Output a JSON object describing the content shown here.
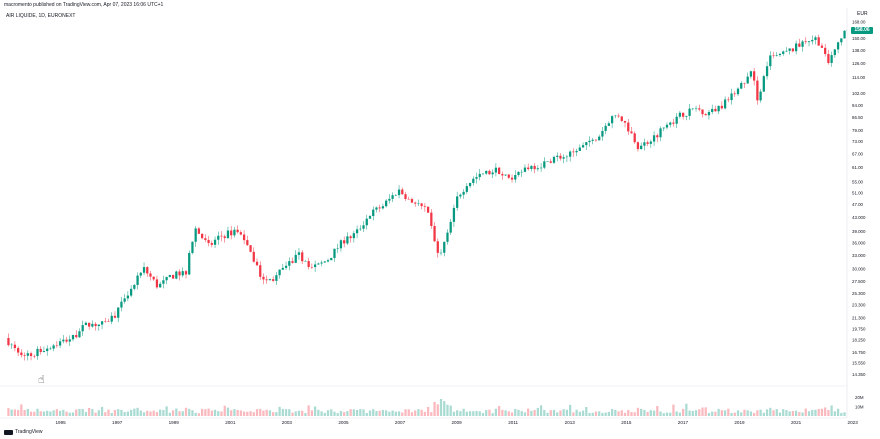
{
  "header": {
    "published_line": "macromento published on TradingView.com, Apr 07, 2023 16:06 UTC+1",
    "symbol_line": "AIR LIQUIDE, 1D, EURONEXT"
  },
  "price_axis": {
    "currency": "EUR",
    "last_price_label": "158.06"
  },
  "brand": {
    "logo_text": "TradingView"
  },
  "icons": {
    "cursor": "pointer-hand-icon"
  },
  "colors": {
    "up": "#089981",
    "down": "#f23645",
    "last_price_bg": "#089981",
    "grid": "#f0f3fa"
  },
  "chart_data": {
    "type": "line",
    "subtype": "candlestick-daily",
    "yscale": "log",
    "ylim": [
      13.8,
      168
    ],
    "x_tick_labels": [
      "1995",
      "1997",
      "1999",
      "2001",
      "2003",
      "2005",
      "2007",
      "2009",
      "2011",
      "2013",
      "2015",
      "2017",
      "2019",
      "2021",
      "2023"
    ],
    "xlim": [
      1993.5,
      2023.3
    ],
    "y_tick_labels": [
      "168.00",
      "150.00",
      "138.00",
      "126.00",
      "114.00",
      "102.00",
      "94.00",
      "86.50",
      "79.00",
      "73.00",
      "67.00",
      "61.00",
      "55.00",
      "51.00",
      "47.00",
      "43.000",
      "39.000",
      "36.000",
      "33.000",
      "30.000",
      "27.500",
      "25.300",
      "23.300",
      "21.300",
      "19.750",
      "18.250",
      "16.750",
      "15.550",
      "14.350"
    ],
    "series": [
      {
        "x": [
          1993.6,
          1994.0,
          1994.5,
          1995.0,
          1995.5,
          1996.0,
          1996.5,
          1997.0,
          1997.5,
          1998.0,
          1998.5,
          1999.0,
          1999.5,
          2000.0,
          2000.3,
          2000.8,
          2001.2,
          2001.7,
          2002.0,
          2002.4,
          2002.8,
          2003.1,
          2003.5,
          2004.0,
          2004.5,
          2005.0,
          2005.5,
          2006.0,
          2006.5,
          2007.0,
          2007.5,
          2008.0,
          2008.5,
          2008.9,
          2009.2,
          2009.6,
          2010.0,
          2010.5,
          2011.0,
          2011.5,
          2012.0,
          2012.5,
          2013.0,
          2013.5,
          2014.0,
          2014.5,
          2015.0,
          2015.3,
          2015.7,
          2016.0,
          2016.5,
          2017.0,
          2017.5,
          2018.0,
          2018.5,
          2019.0,
          2019.5,
          2020.0,
          2020.2,
          2020.6,
          2021.0,
          2021.5,
          2021.9,
          2022.3,
          2022.7,
          2023.0,
          2023.27
        ],
        "values": [
          18.5,
          17.0,
          16.4,
          17.2,
          17.9,
          18.6,
          20.5,
          20.3,
          21.8,
          25.5,
          30.0,
          26.5,
          28.5,
          29.5,
          40.0,
          35.0,
          37.5,
          39.0,
          38.0,
          31.0,
          27.5,
          28.0,
          30.5,
          33.0,
          30.0,
          32.0,
          36.0,
          38.5,
          44.0,
          47.0,
          52.0,
          48.0,
          45.0,
          33.0,
          37.0,
          50.0,
          55.0,
          58.0,
          60.0,
          55.0,
          61.0,
          62.0,
          65.0,
          66.0,
          70.0,
          74.0,
          86.0,
          88.0,
          78.0,
          70.0,
          75.0,
          82.0,
          88.0,
          92.0,
          89.0,
          95.0,
          105.0,
          118.0,
          98.0,
          130.0,
          133.0,
          140.0,
          148.0,
          150.0,
          125.0,
          140.0,
          158.06
        ]
      }
    ],
    "volume": {
      "tick_labels": [
        "20M",
        "10M"
      ],
      "ylim": [
        0,
        30
      ]
    },
    "last_value": 158.06,
    "grid": false,
    "legend": "none"
  }
}
